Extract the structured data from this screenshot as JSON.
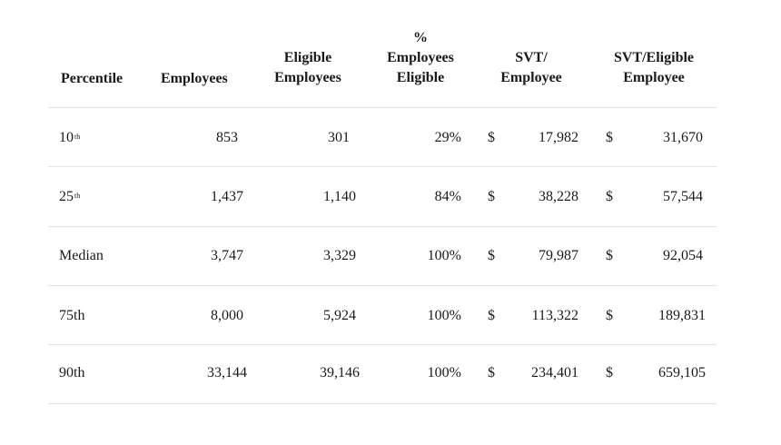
{
  "headers": {
    "percentile": [
      "Percentile"
    ],
    "employees": [
      "Employees"
    ],
    "eligible": [
      "Eligible",
      "Employees"
    ],
    "pct_eligible": [
      "%",
      "Employees",
      "Eligible"
    ],
    "svt_employee": [
      "SVT/",
      "Employee"
    ],
    "svt_eligible": [
      "SVT/Eligible",
      "Employee"
    ]
  },
  "currency_symbol": "$",
  "rows": [
    {
      "percentile": "10",
      "suffix": "th",
      "employees": "853",
      "eligible": "301",
      "pct": "29%",
      "svt": "17,982",
      "svt_eligible": "31,670"
    },
    {
      "percentile": "25",
      "suffix": "th",
      "employees": "1,437",
      "eligible": "1,140",
      "pct": "84%",
      "svt": "38,228",
      "svt_eligible": "57,544"
    },
    {
      "percentile": "Median",
      "suffix": "",
      "employees": "3,747",
      "eligible": "3,329",
      "pct": "100%",
      "svt": "79,987",
      "svt_eligible": "92,054"
    },
    {
      "percentile": "75th",
      "suffix": "",
      "employees": "8,000",
      "eligible": "5,924",
      "pct": "100%",
      "svt": "113,322",
      "svt_eligible": "189,831"
    },
    {
      "percentile": "90th",
      "suffix": "",
      "employees": "33,144",
      "eligible": "39,146",
      "pct": "100%",
      "svt": "234,401",
      "svt_eligible": "659,105"
    }
  ]
}
